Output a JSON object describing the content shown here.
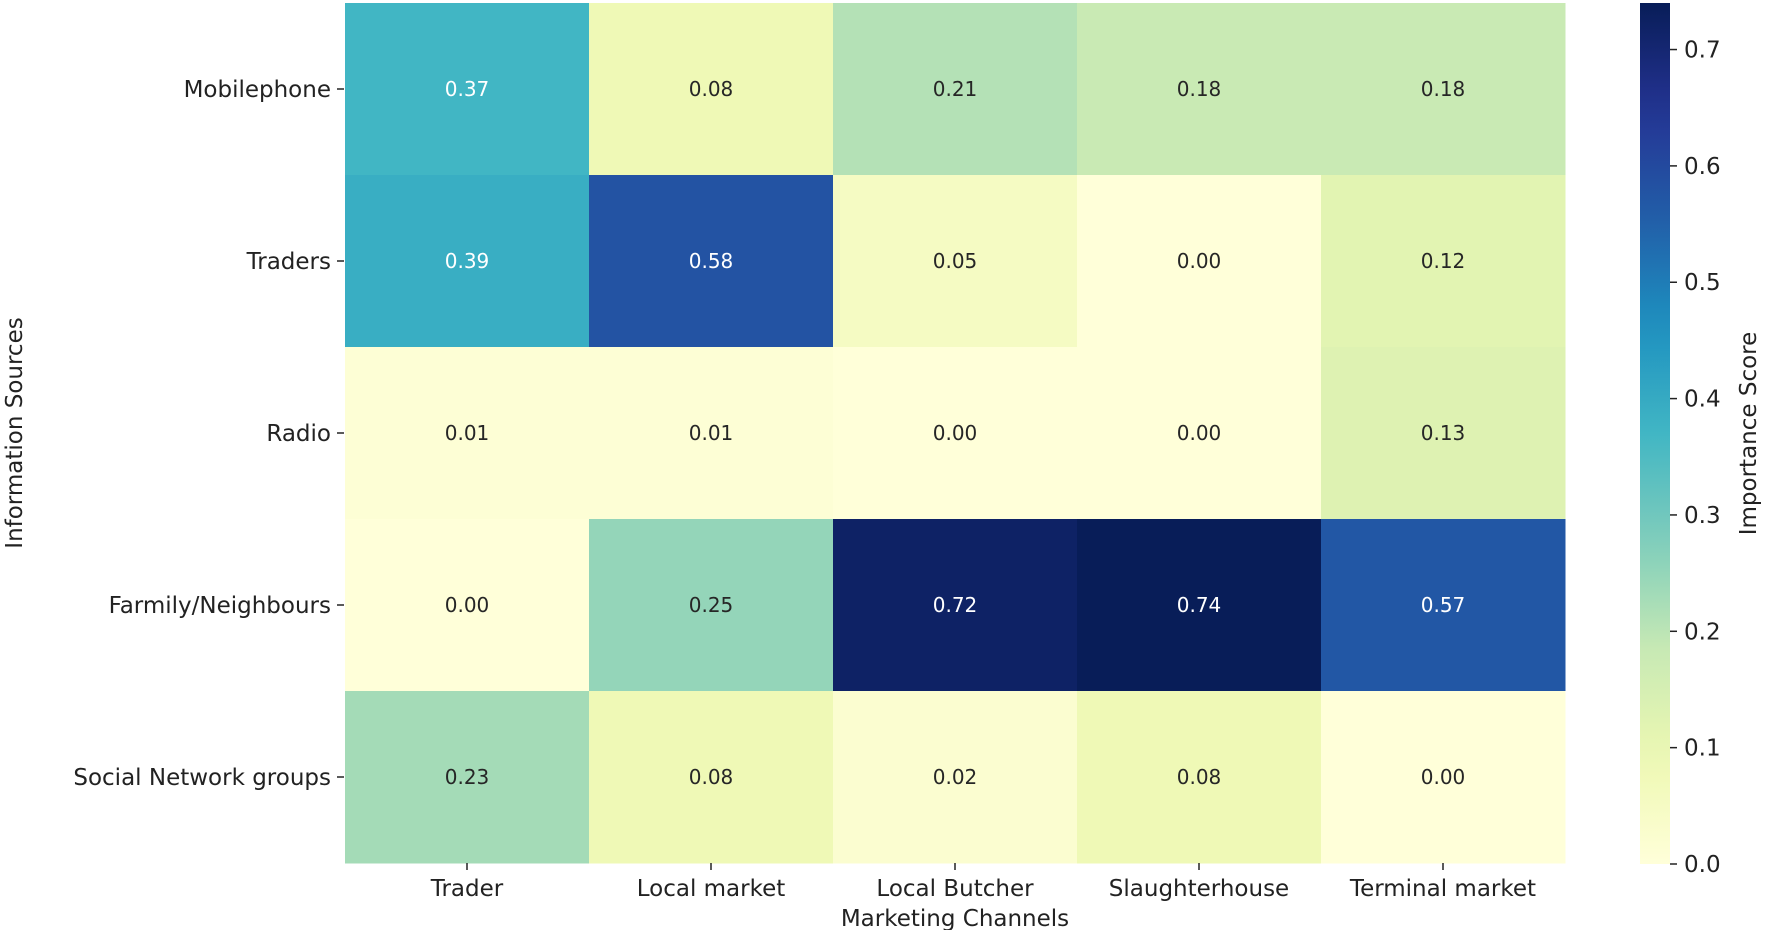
{
  "chart_data": {
    "type": "heatmap",
    "title": "",
    "xlabel": "Marketing Channels",
    "ylabel": "Information Sources",
    "x_categories": [
      "Trader",
      "Local market",
      "Local Butcher",
      "Slaughterhouse",
      "Terminal market"
    ],
    "y_categories": [
      "Mobilephone",
      "Traders",
      "Radio",
      "Farmily/Neighbours",
      "Social Network groups"
    ],
    "values": [
      [
        0.37,
        0.08,
        0.21,
        0.18,
        0.18
      ],
      [
        0.39,
        0.58,
        0.05,
        0.0,
        0.12
      ],
      [
        0.01,
        0.01,
        0.0,
        0.0,
        0.13
      ],
      [
        0.0,
        0.25,
        0.72,
        0.74,
        0.57
      ],
      [
        0.23,
        0.08,
        0.02,
        0.08,
        0.0
      ]
    ],
    "value_format": "0.00",
    "colormap": "YlGnBu",
    "vmin": 0.0,
    "vmax": 0.74,
    "colorbar": {
      "label": "Importance Score",
      "ticks": [
        0.0,
        0.1,
        0.2,
        0.3,
        0.4,
        0.5,
        0.6,
        0.7
      ],
      "tick_labels": [
        "0.0",
        "0.1",
        "0.2",
        "0.3",
        "0.4",
        "0.5",
        "0.6",
        "0.7"
      ]
    }
  }
}
